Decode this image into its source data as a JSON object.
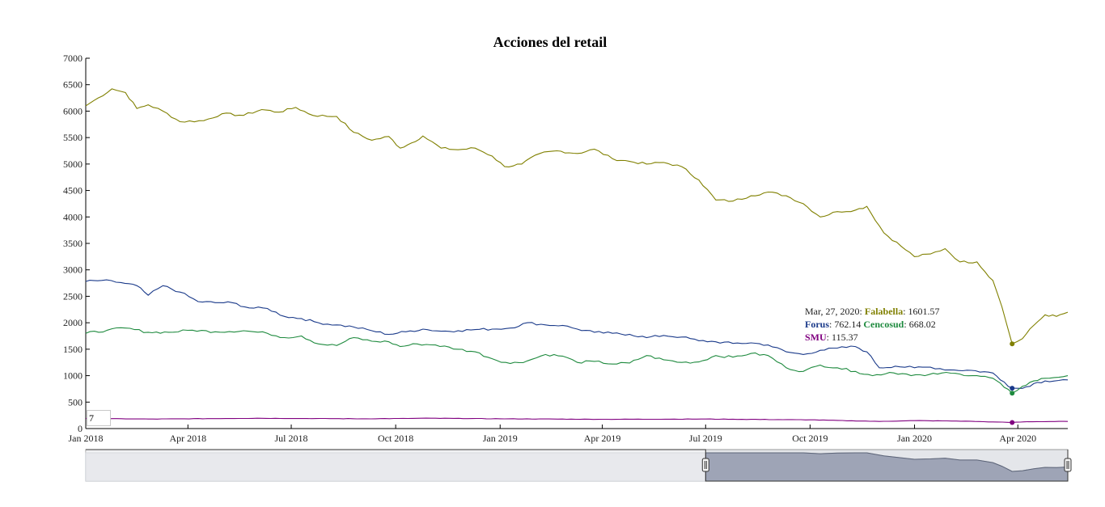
{
  "chart_data": {
    "type": "line",
    "title": "Acciones del retail",
    "xlabel": "",
    "ylabel": "",
    "ylim": [
      0,
      7000
    ],
    "yticks": [
      0,
      500,
      1000,
      1500,
      2000,
      2500,
      3000,
      3500,
      4000,
      4500,
      5000,
      5500,
      6000,
      6500,
      7000
    ],
    "xlim": [
      "2018-01-01",
      "2020-05-15"
    ],
    "xticks": [
      {
        "date": "2018-01-01",
        "label": "Jan 2018"
      },
      {
        "date": "2018-04-01",
        "label": "Apr 2018"
      },
      {
        "date": "2018-07-01",
        "label": "Jul 2018"
      },
      {
        "date": "2018-10-01",
        "label": "Oct 2018"
      },
      {
        "date": "2019-01-01",
        "label": "Jan 2019"
      },
      {
        "date": "2019-04-01",
        "label": "Apr 2019"
      },
      {
        "date": "2019-07-01",
        "label": "Jul 2019"
      },
      {
        "date": "2019-10-01",
        "label": "Oct 2019"
      },
      {
        "date": "2020-01-01",
        "label": "Jan 2020"
      },
      {
        "date": "2020-04-01",
        "label": "Apr 2020"
      }
    ],
    "grid": false,
    "legend": "follows-cursor",
    "series": [
      {
        "name": "Falabella",
        "color": "#808000",
        "points": [
          [
            "2018-01-01",
            6100
          ],
          [
            "2018-01-12",
            6250
          ],
          [
            "2018-01-24",
            6420
          ],
          [
            "2018-02-05",
            6350
          ],
          [
            "2018-02-15",
            6050
          ],
          [
            "2018-02-25",
            6120
          ],
          [
            "2018-03-10",
            6000
          ],
          [
            "2018-03-25",
            5800
          ],
          [
            "2018-04-15",
            5820
          ],
          [
            "2018-05-01",
            5950
          ],
          [
            "2018-05-20",
            5920
          ],
          [
            "2018-06-05",
            6030
          ],
          [
            "2018-06-20",
            5980
          ],
          [
            "2018-07-05",
            6070
          ],
          [
            "2018-07-20",
            5920
          ],
          [
            "2018-08-10",
            5900
          ],
          [
            "2018-08-25",
            5600
          ],
          [
            "2018-09-10",
            5450
          ],
          [
            "2018-09-25",
            5520
          ],
          [
            "2018-10-05",
            5300
          ],
          [
            "2018-10-15",
            5400
          ],
          [
            "2018-10-25",
            5530
          ],
          [
            "2018-11-10",
            5300
          ],
          [
            "2018-11-25",
            5270
          ],
          [
            "2018-12-10",
            5300
          ],
          [
            "2018-12-25",
            5150
          ],
          [
            "2019-01-05",
            4950
          ],
          [
            "2019-01-20",
            5000
          ],
          [
            "2019-02-05",
            5200
          ],
          [
            "2019-02-20",
            5250
          ],
          [
            "2019-03-10",
            5200
          ],
          [
            "2019-03-25",
            5280
          ],
          [
            "2019-04-10",
            5100
          ],
          [
            "2019-04-25",
            5050
          ],
          [
            "2019-05-10",
            5000
          ],
          [
            "2019-05-25",
            5030
          ],
          [
            "2019-06-10",
            4950
          ],
          [
            "2019-06-25",
            4700
          ],
          [
            "2019-07-10",
            4320
          ],
          [
            "2019-07-25",
            4300
          ],
          [
            "2019-08-10",
            4400
          ],
          [
            "2019-08-25",
            4470
          ],
          [
            "2019-09-10",
            4400
          ],
          [
            "2019-09-25",
            4250
          ],
          [
            "2019-10-10",
            4000
          ],
          [
            "2019-10-25",
            4100
          ],
          [
            "2019-11-10",
            4130
          ],
          [
            "2019-11-20",
            4200
          ],
          [
            "2019-12-05",
            3700
          ],
          [
            "2019-12-20",
            3450
          ],
          [
            "2020-01-01",
            3250
          ],
          [
            "2020-01-15",
            3300
          ],
          [
            "2020-01-28",
            3400
          ],
          [
            "2020-02-10",
            3150
          ],
          [
            "2020-02-25",
            3150
          ],
          [
            "2020-03-10",
            2800
          ],
          [
            "2020-03-18",
            2300
          ],
          [
            "2020-03-27",
            1601.57
          ],
          [
            "2020-04-05",
            1700
          ],
          [
            "2020-04-15",
            1950
          ],
          [
            "2020-04-25",
            2150
          ],
          [
            "2020-05-05",
            2120
          ],
          [
            "2020-05-15",
            2200
          ]
        ]
      },
      {
        "name": "Forus",
        "color": "#1a3a8a",
        "points": [
          [
            "2018-01-01",
            2780
          ],
          [
            "2018-01-15",
            2800
          ],
          [
            "2018-02-01",
            2760
          ],
          [
            "2018-02-15",
            2700
          ],
          [
            "2018-02-25",
            2520
          ],
          [
            "2018-03-10",
            2700
          ],
          [
            "2018-03-25",
            2580
          ],
          [
            "2018-04-10",
            2400
          ],
          [
            "2018-04-25",
            2380
          ],
          [
            "2018-05-10",
            2380
          ],
          [
            "2018-05-25",
            2280
          ],
          [
            "2018-06-10",
            2270
          ],
          [
            "2018-06-25",
            2120
          ],
          [
            "2018-07-10",
            2080
          ],
          [
            "2018-07-25",
            2000
          ],
          [
            "2018-08-10",
            1960
          ],
          [
            "2018-08-25",
            1920
          ],
          [
            "2018-09-10",
            1850
          ],
          [
            "2018-09-25",
            1780
          ],
          [
            "2018-10-10",
            1830
          ],
          [
            "2018-10-25",
            1880
          ],
          [
            "2018-11-10",
            1840
          ],
          [
            "2018-11-25",
            1850
          ],
          [
            "2018-12-10",
            1870
          ],
          [
            "2018-12-25",
            1880
          ],
          [
            "2019-01-10",
            1900
          ],
          [
            "2019-01-25",
            2000
          ],
          [
            "2019-02-10",
            1960
          ],
          [
            "2019-02-25",
            1950
          ],
          [
            "2019-03-10",
            1880
          ],
          [
            "2019-03-25",
            1820
          ],
          [
            "2019-04-10",
            1800
          ],
          [
            "2019-04-25",
            1780
          ],
          [
            "2019-05-10",
            1720
          ],
          [
            "2019-05-25",
            1760
          ],
          [
            "2019-06-10",
            1730
          ],
          [
            "2019-06-25",
            1660
          ],
          [
            "2019-07-10",
            1640
          ],
          [
            "2019-07-25",
            1610
          ],
          [
            "2019-08-10",
            1620
          ],
          [
            "2019-08-25",
            1580
          ],
          [
            "2019-09-10",
            1450
          ],
          [
            "2019-09-25",
            1400
          ],
          [
            "2019-10-10",
            1480
          ],
          [
            "2019-10-25",
            1520
          ],
          [
            "2019-11-10",
            1550
          ],
          [
            "2019-11-20",
            1450
          ],
          [
            "2019-12-01",
            1150
          ],
          [
            "2019-12-15",
            1180
          ],
          [
            "2020-01-01",
            1150
          ],
          [
            "2020-01-15",
            1160
          ],
          [
            "2020-02-01",
            1110
          ],
          [
            "2020-02-20",
            1100
          ],
          [
            "2020-03-10",
            1050
          ],
          [
            "2020-03-20",
            880
          ],
          [
            "2020-03-27",
            762.14
          ],
          [
            "2020-04-05",
            760
          ],
          [
            "2020-04-15",
            850
          ],
          [
            "2020-04-25",
            900
          ],
          [
            "2020-05-15",
            920
          ]
        ]
      },
      {
        "name": "Cencosud",
        "color": "#1e8a3e",
        "points": [
          [
            "2018-01-01",
            1800
          ],
          [
            "2018-01-20",
            1860
          ],
          [
            "2018-02-05",
            1900
          ],
          [
            "2018-02-25",
            1820
          ],
          [
            "2018-03-15",
            1820
          ],
          [
            "2018-04-05",
            1860
          ],
          [
            "2018-04-25",
            1830
          ],
          [
            "2018-05-20",
            1850
          ],
          [
            "2018-06-10",
            1800
          ],
          [
            "2018-06-25",
            1720
          ],
          [
            "2018-07-10",
            1750
          ],
          [
            "2018-07-25",
            1600
          ],
          [
            "2018-08-10",
            1570
          ],
          [
            "2018-08-25",
            1720
          ],
          [
            "2018-09-10",
            1650
          ],
          [
            "2018-09-25",
            1640
          ],
          [
            "2018-10-05",
            1550
          ],
          [
            "2018-10-20",
            1600
          ],
          [
            "2018-11-05",
            1580
          ],
          [
            "2018-11-25",
            1500
          ],
          [
            "2018-12-10",
            1450
          ],
          [
            "2018-12-25",
            1320
          ],
          [
            "2019-01-10",
            1230
          ],
          [
            "2019-01-25",
            1280
          ],
          [
            "2019-02-10",
            1400
          ],
          [
            "2019-02-25",
            1370
          ],
          [
            "2019-03-10",
            1250
          ],
          [
            "2019-03-25",
            1270
          ],
          [
            "2019-04-10",
            1220
          ],
          [
            "2019-04-25",
            1240
          ],
          [
            "2019-05-10",
            1380
          ],
          [
            "2019-05-25",
            1300
          ],
          [
            "2019-06-10",
            1250
          ],
          [
            "2019-06-25",
            1260
          ],
          [
            "2019-07-10",
            1380
          ],
          [
            "2019-07-25",
            1350
          ],
          [
            "2019-08-10",
            1420
          ],
          [
            "2019-08-25",
            1380
          ],
          [
            "2019-09-10",
            1150
          ],
          [
            "2019-09-25",
            1080
          ],
          [
            "2019-10-10",
            1200
          ],
          [
            "2019-10-25",
            1150
          ],
          [
            "2019-11-10",
            1080
          ],
          [
            "2019-11-25",
            1000
          ],
          [
            "2019-12-10",
            1060
          ],
          [
            "2019-12-25",
            1030
          ],
          [
            "2020-01-10",
            1000
          ],
          [
            "2020-01-25",
            1050
          ],
          [
            "2020-02-10",
            1030
          ],
          [
            "2020-02-25",
            1000
          ],
          [
            "2020-03-10",
            950
          ],
          [
            "2020-03-20",
            780
          ],
          [
            "2020-03-27",
            668.02
          ],
          [
            "2020-04-05",
            800
          ],
          [
            "2020-04-15",
            900
          ],
          [
            "2020-04-25",
            950
          ],
          [
            "2020-05-15",
            1000
          ]
        ]
      },
      {
        "name": "SMU",
        "color": "#800080",
        "points": [
          [
            "2018-01-01",
            190
          ],
          [
            "2018-03-01",
            180
          ],
          [
            "2018-06-01",
            195
          ],
          [
            "2018-09-01",
            185
          ],
          [
            "2018-11-01",
            195
          ],
          [
            "2019-01-01",
            185
          ],
          [
            "2019-04-01",
            175
          ],
          [
            "2019-07-01",
            180
          ],
          [
            "2019-10-01",
            165
          ],
          [
            "2019-12-01",
            135
          ],
          [
            "2020-01-01",
            150
          ],
          [
            "2020-02-15",
            140
          ],
          [
            "2020-03-10",
            125
          ],
          [
            "2020-03-27",
            115.37
          ],
          [
            "2020-04-10",
            130
          ],
          [
            "2020-05-15",
            135
          ]
        ]
      }
    ],
    "highlight": {
      "date_label": "Mar, 27, 2020",
      "date": "2020-03-27",
      "values": [
        {
          "series": "Falabella",
          "value": 1601.57,
          "display": "1601.57"
        },
        {
          "series": "Forus",
          "value": 762.14,
          "display": "762.14"
        },
        {
          "series": "Cencosud",
          "value": 668.02,
          "display": "668.02"
        },
        {
          "series": "SMU",
          "value": 115.37,
          "display": "115.37"
        }
      ]
    },
    "range_selector": {
      "window_start": "2019-07-01",
      "window_end": "2020-05-15"
    }
  },
  "controls": {
    "roll_period": "7"
  }
}
